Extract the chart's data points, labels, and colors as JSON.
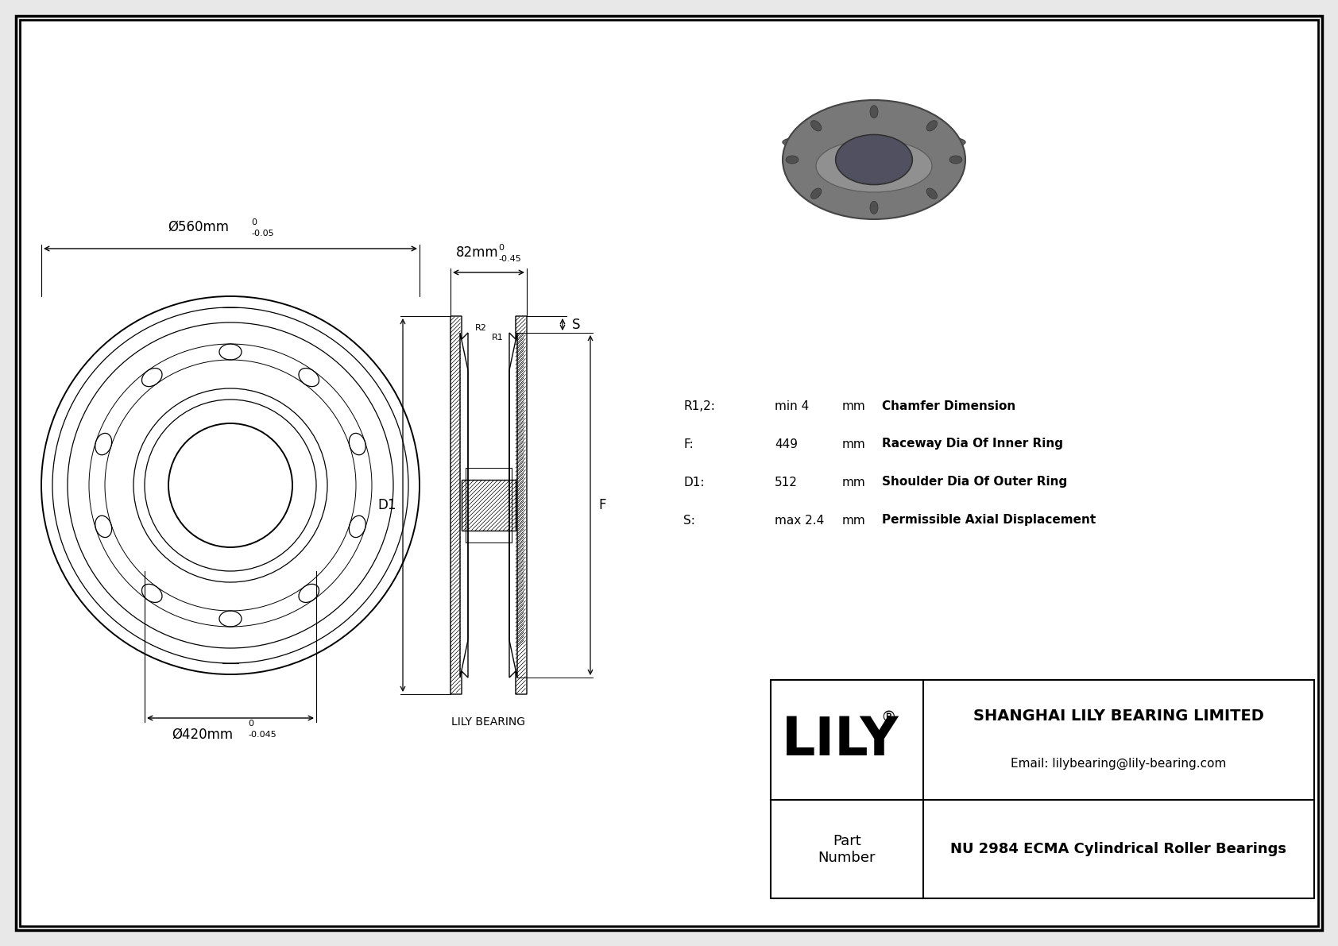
{
  "bg_color": "#e8e8e8",
  "drawing_bg": "#ffffff",
  "border_color": "#000000",
  "line_color": "#000000",
  "outer_dia_label": "Ø560mm",
  "outer_dia_tol_upper": "0",
  "outer_dia_tol_lower": "-0.05",
  "inner_dia_label": "Ø420mm",
  "inner_dia_tol_upper": "0",
  "inner_dia_tol_lower": "-0.045",
  "width_label": "82mm",
  "width_tol_upper": "0",
  "width_tol_lower": "-0.45",
  "params": [
    {
      "symbol": "R1,2:",
      "value": "min 4",
      "unit": "mm",
      "desc": "Chamfer Dimension"
    },
    {
      "symbol": "F:",
      "value": "449",
      "unit": "mm",
      "desc": "Raceway Dia Of Inner Ring"
    },
    {
      "symbol": "D1:",
      "value": "512",
      "unit": "mm",
      "desc": "Shoulder Dia Of Outer Ring"
    },
    {
      "symbol": "S:",
      "value": "max 2.4",
      "unit": "mm",
      "desc": "Permissible Axial Displacement"
    }
  ],
  "company_name": "SHANGHAI LILY BEARING LIMITED",
  "email": "Email: lilybearing@lily-bearing.com",
  "part_number": "NU 2984 ECMA Cylindrical Roller Bearings",
  "lily_label": "LILY",
  "part_label": "Part\nNumber",
  "lily_bearing_label": "LILY BEARING",
  "label_D1": "D1",
  "label_F": "F",
  "label_S": "S",
  "label_R2": "R2",
  "label_R1": "R1"
}
